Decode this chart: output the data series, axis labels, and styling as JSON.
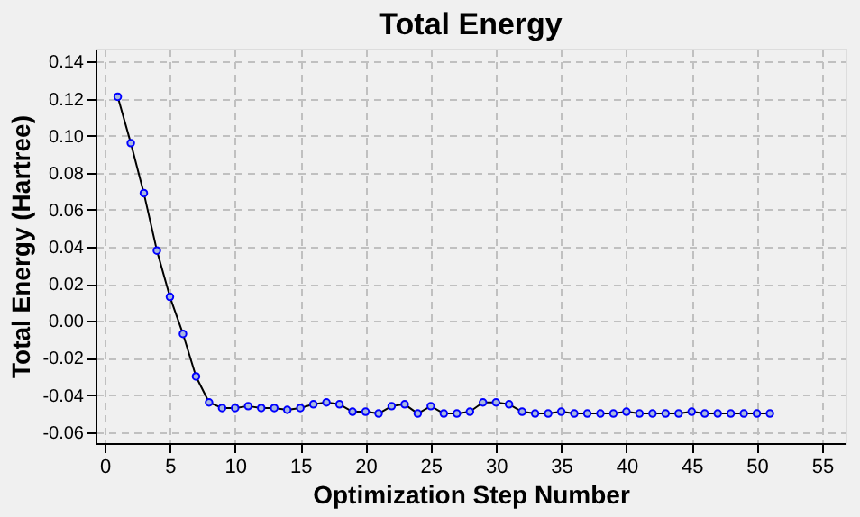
{
  "chart_data": {
    "type": "line",
    "title": "Total Energy",
    "xlabel": "Optimization Step Number",
    "ylabel": "Total Energy (Hartree)",
    "x": [
      1,
      2,
      3,
      4,
      5,
      6,
      7,
      8,
      9,
      10,
      11,
      12,
      13,
      14,
      15,
      16,
      17,
      18,
      19,
      20,
      21,
      22,
      23,
      24,
      25,
      26,
      27,
      28,
      29,
      30,
      31,
      32,
      33,
      34,
      35,
      36,
      37,
      38,
      39,
      40,
      41,
      42,
      43,
      44,
      45,
      46,
      47,
      48,
      49,
      50,
      51
    ],
    "series": [
      {
        "color": "#0000ff",
        "values": [
          0.121,
          0.096,
          0.069,
          0.038,
          0.013,
          -0.007,
          -0.03,
          -0.044,
          -0.047,
          -0.047,
          -0.046,
          -0.047,
          -0.047,
          -0.048,
          -0.047,
          -0.045,
          -0.044,
          -0.045,
          -0.049,
          -0.049,
          -0.05,
          -0.046,
          -0.045,
          -0.05,
          -0.046,
          -0.05,
          -0.05,
          -0.049,
          -0.044,
          -0.044,
          -0.045,
          -0.049,
          -0.05,
          -0.05,
          -0.049,
          -0.05,
          -0.05,
          -0.05,
          -0.05,
          -0.049,
          -0.05,
          -0.05,
          -0.05,
          -0.05,
          -0.049,
          -0.05,
          -0.05,
          -0.05,
          -0.05,
          -0.05,
          -0.05
        ]
      }
    ],
    "xlim": [
      -0.7,
      56.8
    ],
    "xticks": [
      0,
      5,
      10,
      15,
      20,
      25,
      30,
      35,
      40,
      45,
      50,
      55
    ],
    "ylim": [
      -0.066,
      0.147
    ],
    "yticks": [
      {
        "value": -0.06,
        "label": "-0.06"
      },
      {
        "value": -0.04,
        "label": "-0.04"
      },
      {
        "value": -0.02,
        "label": "-0.02"
      },
      {
        "value": 0,
        "label": "0.00"
      },
      {
        "value": 0.02,
        "label": "0.02"
      },
      {
        "value": 0.04,
        "label": "0.04"
      },
      {
        "value": 0.06,
        "label": "0.06"
      },
      {
        "value": 0.08,
        "label": "0.08"
      },
      {
        "value": 0.1,
        "label": "0.10"
      },
      {
        "value": 0.12,
        "label": "0.12"
      },
      {
        "value": 0.14,
        "label": "0.14"
      }
    ],
    "grid": true,
    "marker": "circle",
    "line_style": "solid"
  }
}
